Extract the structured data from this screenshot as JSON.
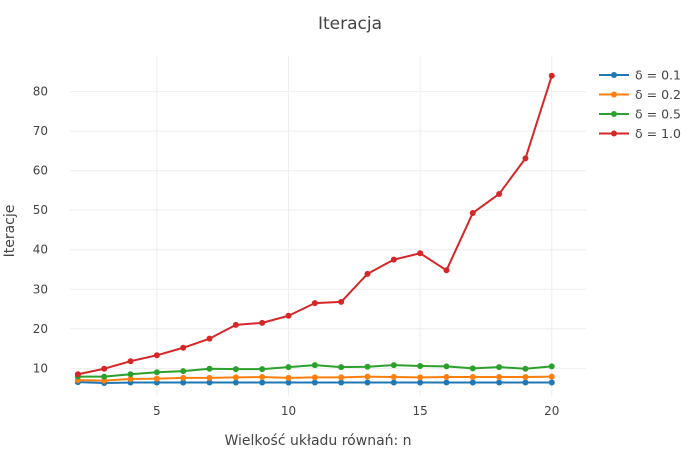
{
  "chart_data": {
    "type": "line",
    "title": "Iteracja",
    "xlabel": "Wielkość układu równań: n",
    "ylabel": "Iteracje",
    "x": [
      2,
      3,
      4,
      5,
      6,
      7,
      8,
      9,
      10,
      11,
      12,
      13,
      14,
      15,
      16,
      17,
      18,
      19,
      20
    ],
    "xlim": [
      1.7,
      21.3
    ],
    "ylim": [
      3,
      89
    ],
    "xticks": [
      5,
      10,
      15,
      20
    ],
    "yticks": [
      10,
      20,
      30,
      40,
      50,
      60,
      70,
      80
    ],
    "grid": true,
    "legend_position": "top-right",
    "series": [
      {
        "name": "δ = 0.1",
        "color": "#1f77b4",
        "values": [
          6.5,
          6.3,
          6.4,
          6.4,
          6.4,
          6.4,
          6.4,
          6.4,
          6.4,
          6.4,
          6.4,
          6.4,
          6.4,
          6.4,
          6.4,
          6.4,
          6.4,
          6.4,
          6.4
        ]
      },
      {
        "name": "δ = 0.2",
        "color": "#ff7f0e",
        "values": [
          7.0,
          6.9,
          7.3,
          7.4,
          7.6,
          7.6,
          7.7,
          7.8,
          7.6,
          7.7,
          7.7,
          7.9,
          7.8,
          7.7,
          7.8,
          7.8,
          7.8,
          7.8,
          7.9
        ]
      },
      {
        "name": "δ = 0.5",
        "color": "#2ca02c",
        "values": [
          7.9,
          7.9,
          8.5,
          9.0,
          9.3,
          9.9,
          9.8,
          9.8,
          10.3,
          10.8,
          10.3,
          10.4,
          10.8,
          10.6,
          10.5,
          10.0,
          10.3,
          9.9,
          10.5
        ]
      },
      {
        "name": "δ = 1.0",
        "color": "#d62728",
        "values": [
          8.5,
          9.9,
          11.8,
          13.3,
          15.2,
          17.5,
          21.0,
          21.5,
          23.3,
          26.5,
          26.8,
          33.9,
          37.5,
          39.1,
          34.8,
          49.3,
          54.1,
          63.1,
          84.0
        ]
      }
    ]
  }
}
